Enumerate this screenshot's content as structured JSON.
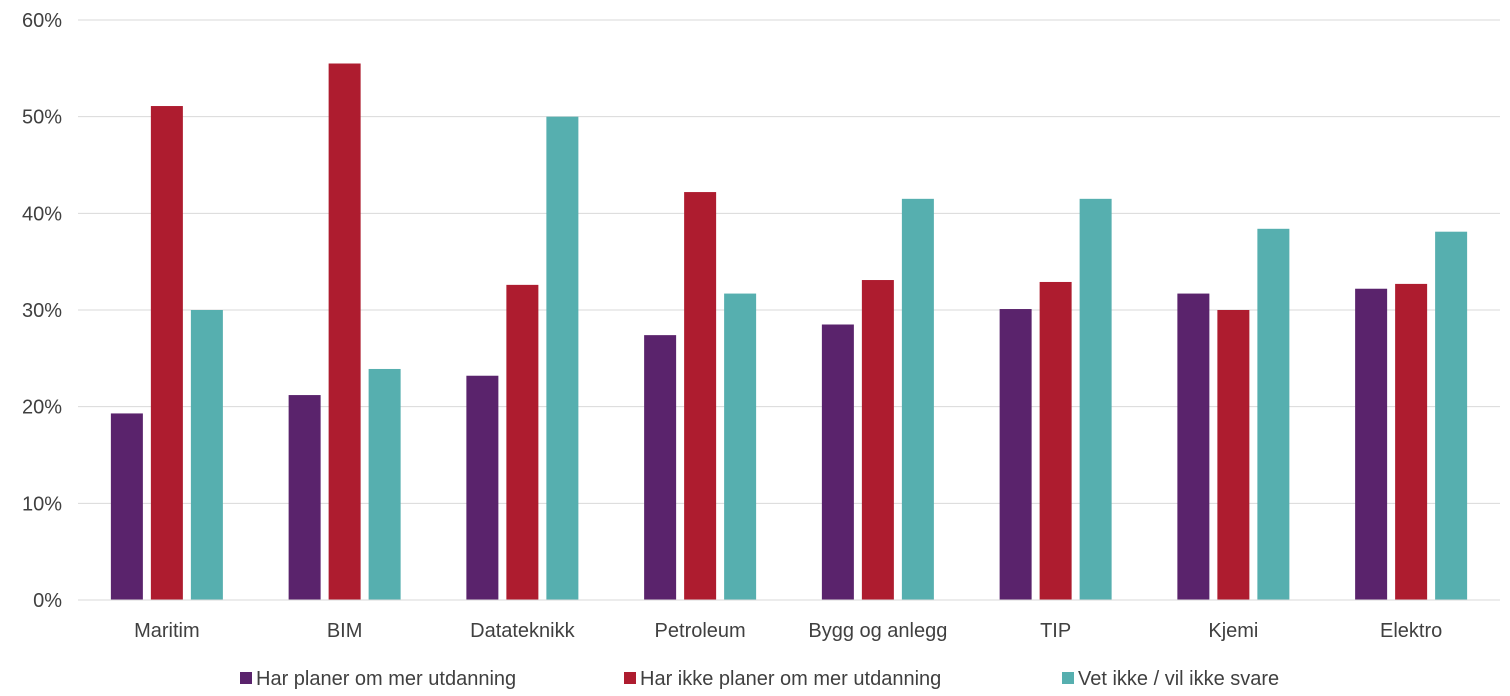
{
  "chart_data": {
    "type": "bar",
    "title": "",
    "xlabel": "",
    "ylabel": "",
    "ylim": [
      0,
      60
    ],
    "y_ticks": [
      0,
      10,
      20,
      30,
      40,
      50,
      60
    ],
    "y_tick_format": "percent",
    "grid": true,
    "legend_position": "bottom",
    "categories": [
      "Maritim",
      "BIM",
      "Datateknikk",
      "Petroleum",
      "Bygg og anlegg",
      "TIP",
      "Kjemi",
      "Elektro"
    ],
    "series": [
      {
        "name": "Har planer om mer utdanning",
        "color": "#5A236C",
        "values": [
          19.3,
          21.2,
          23.2,
          27.4,
          28.5,
          30.1,
          31.7,
          32.2
        ]
      },
      {
        "name": "Har ikke planer om mer utdanning",
        "color": "#AE1C2F",
        "values": [
          51.1,
          55.5,
          32.6,
          42.2,
          33.1,
          32.9,
          30.0,
          32.7
        ]
      },
      {
        "name": "Vet ikke / vil ikke svare",
        "color": "#56AFAF",
        "values": [
          30.0,
          23.9,
          50.0,
          31.7,
          41.5,
          41.5,
          38.4,
          38.1
        ]
      }
    ]
  }
}
